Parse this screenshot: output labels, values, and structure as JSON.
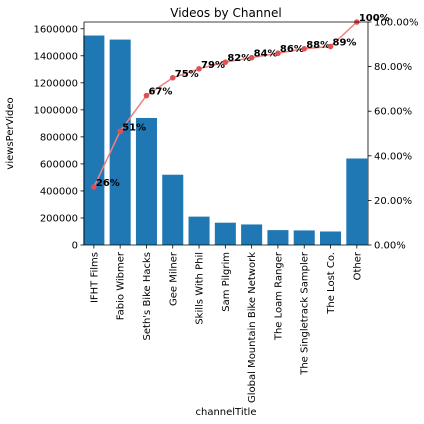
{
  "chart_data": {
    "type": "bar",
    "title": "Videos by Channel",
    "xlabel": "channelTitle",
    "ylabel": "viewsPerVideo",
    "categories": [
      "IFHT Films",
      "Fabio Wibmer",
      "Seth's Bike Hacks",
      "Gee Milner",
      "Skills With Phil",
      "Sam Pilgrim",
      "Global Mountain Bike Network",
      "The Loam Ranger",
      "The Singletrack Sampler",
      "The Lost Co.",
      "Other"
    ],
    "values": [
      1550000,
      1520000,
      940000,
      520000,
      210000,
      165000,
      152000,
      110000,
      108000,
      100000,
      640000
    ],
    "ylim": [
      0,
      1650000
    ],
    "yticks": [
      0,
      200000,
      400000,
      600000,
      800000,
      1000000,
      1200000,
      1400000,
      1600000
    ],
    "ytick_labels": [
      "0",
      "200000",
      "400000",
      "600000",
      "800000",
      "1000000",
      "1200000",
      "1400000",
      "1600000"
    ],
    "bar_color": "#1f77b4",
    "secondary_axis": {
      "type": "line",
      "ylim": [
        0,
        100
      ],
      "ticks": [
        0,
        20,
        40,
        60,
        80,
        100
      ],
      "tick_labels": [
        "0.00%",
        "20.00%",
        "40.00%",
        "60.00%",
        "80.00%",
        "100.00%"
      ],
      "values": [
        26,
        51,
        67,
        75,
        79,
        82,
        84,
        86,
        88,
        89,
        100
      ],
      "point_labels": [
        "26%",
        "51%",
        "67%",
        "75%",
        "79%",
        "82%",
        "84%",
        "86%",
        "88%",
        "89%",
        "100%"
      ],
      "line_color": "#f08080",
      "marker_color": "#e05050"
    },
    "grid": false
  }
}
